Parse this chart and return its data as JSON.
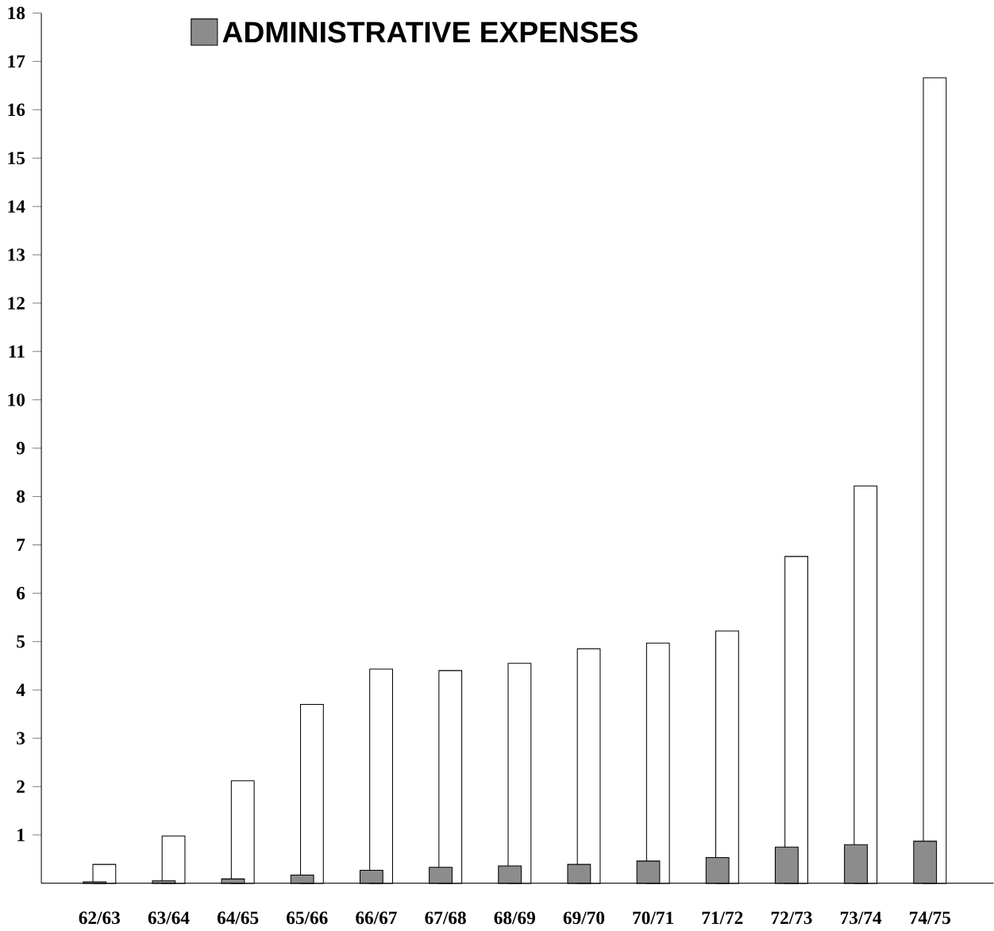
{
  "chart_data": {
    "type": "bar",
    "categories": [
      "62/63",
      "63/64",
      "64/65",
      "65/66",
      "66/67",
      "67/68",
      "68/69",
      "69/70",
      "70/71",
      "71/72",
      "72/73",
      "73/74",
      "74/75"
    ],
    "series": [
      {
        "color": "#ffffff",
        "values": [
          0.39,
          0.98,
          2.12,
          3.7,
          4.43,
          4.4,
          4.55,
          4.85,
          4.97,
          5.22,
          6.76,
          8.22,
          16.66
        ]
      },
      {
        "name": "ADMINISTRATIVE EXPENSES",
        "color": "#8c8c8c",
        "values": [
          0.03,
          0.05,
          0.09,
          0.17,
          0.27,
          0.33,
          0.36,
          0.39,
          0.46,
          0.53,
          0.75,
          0.8,
          0.87
        ]
      }
    ],
    "ylim": [
      0,
      18
    ],
    "yticks": [
      1,
      2,
      3,
      4,
      5,
      6,
      7,
      8,
      9,
      10,
      11,
      12,
      13,
      14,
      15,
      16,
      17,
      18
    ],
    "legend": "top left"
  }
}
